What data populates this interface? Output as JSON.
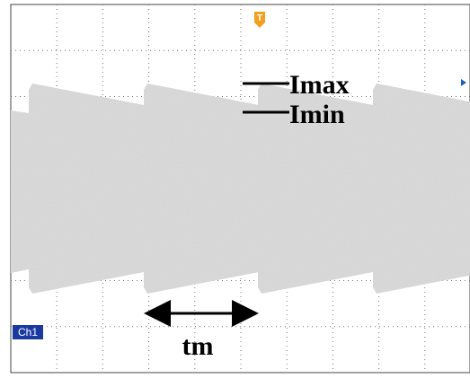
{
  "screen": {
    "trigger_marker": "T",
    "channel_label": "Ch1"
  },
  "annotations": {
    "imax": "Imax",
    "imin": "Imin",
    "tm": "tm"
  }
}
